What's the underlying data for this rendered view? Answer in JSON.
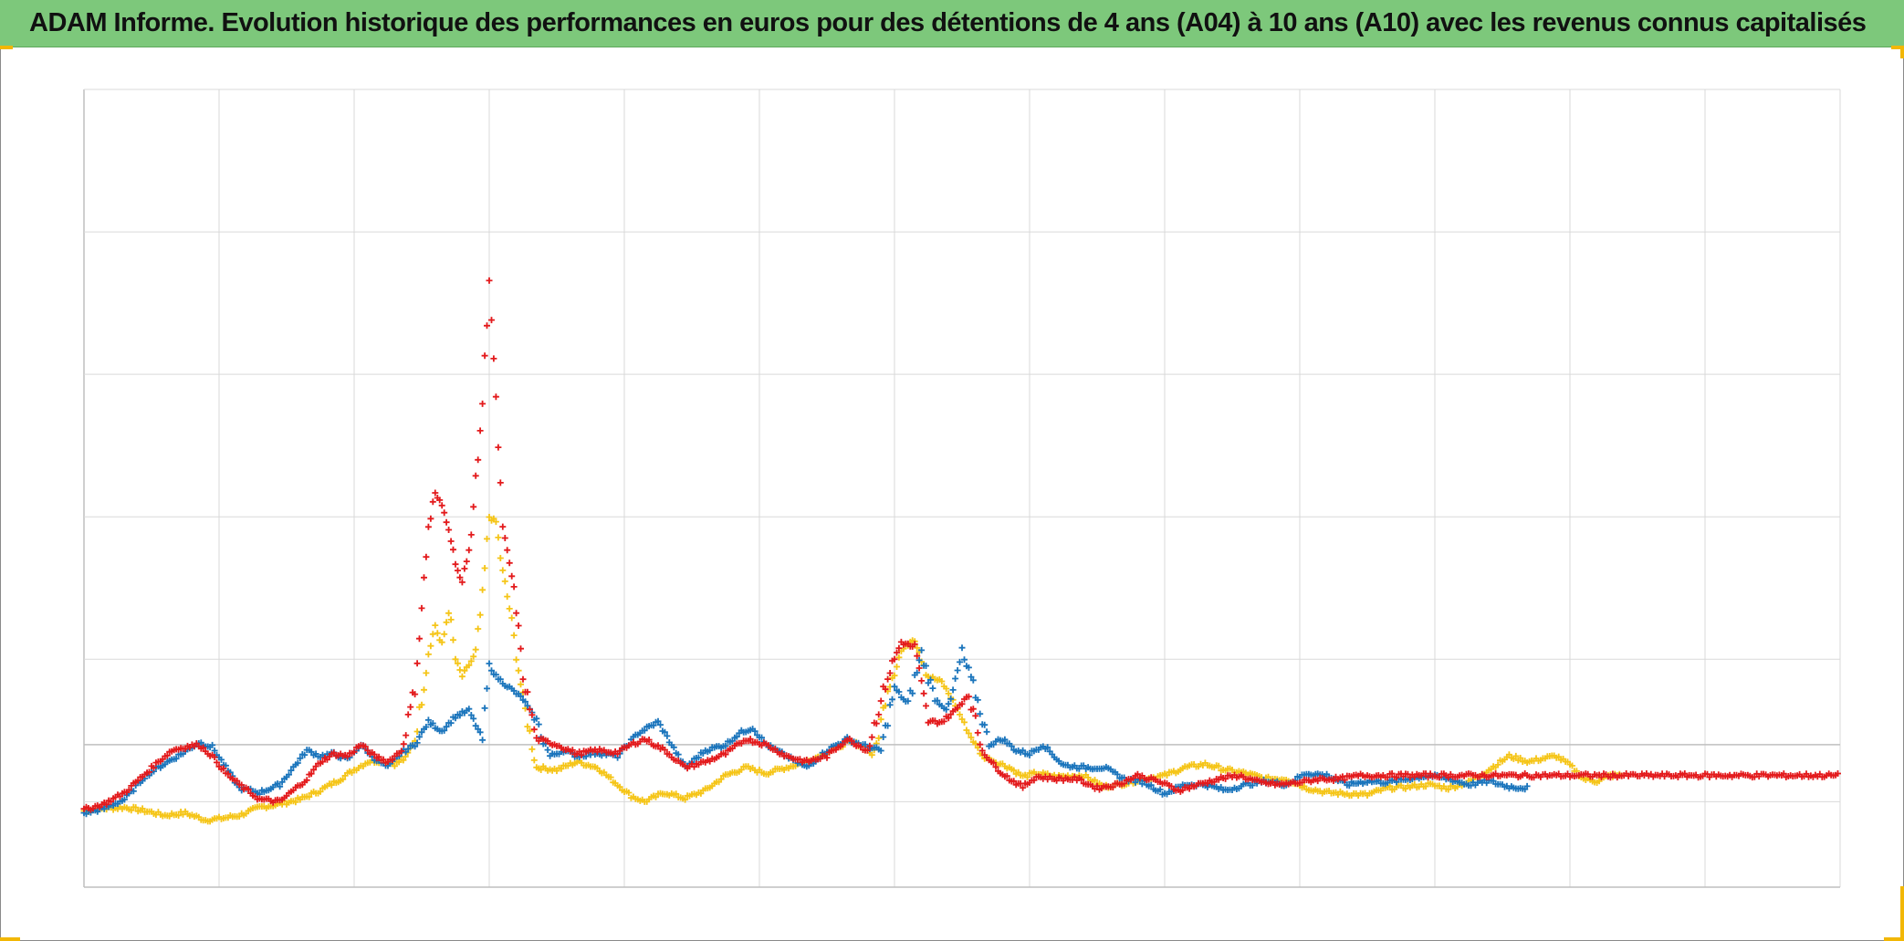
{
  "title": "ADAM Informe. Evolution historique des performances en euros pour des détentions de 4 ans (A04) à 10 ans (A10) avec les revenus connus capitalisés",
  "colors": {
    "title_bar": "#7dc87b",
    "grid": "#d9d9d9",
    "axis": "#bfbfbf",
    "corner_marks": "#f2b705"
  },
  "chart_data": {
    "type": "scatter",
    "marker": "plus",
    "title": "ADAM Informe. Evolution historique des performances en euros pour des détentions de 4 ans (A04) à 10 ans (A10) avec les revenus connus capitalisés",
    "xlabel": "",
    "ylabel": "",
    "xlim": [
      0,
      13
    ],
    "ylim": [
      -1.25,
      5.75
    ],
    "grid": true,
    "legend": "none",
    "tick_labels_shown": false,
    "series": [
      {
        "color": "#f5c518",
        "points": [
          [
            0,
            -0.58
          ],
          [
            0.15,
            -0.56
          ],
          [
            0.3,
            -0.55
          ],
          [
            0.45,
            -0.58
          ],
          [
            0.6,
            -0.62
          ],
          [
            0.75,
            -0.6
          ],
          [
            0.9,
            -0.66
          ],
          [
            1.0,
            -0.65
          ],
          [
            1.15,
            -0.62
          ],
          [
            1.3,
            -0.55
          ],
          [
            1.45,
            -0.52
          ],
          [
            1.6,
            -0.48
          ],
          [
            1.75,
            -0.4
          ],
          [
            1.9,
            -0.3
          ],
          [
            2.0,
            -0.22
          ],
          [
            2.1,
            -0.15
          ],
          [
            2.2,
            -0.14
          ],
          [
            2.3,
            -0.17
          ],
          [
            2.38,
            -0.12
          ],
          [
            2.45,
            0.05
          ],
          [
            2.5,
            0.4
          ],
          [
            2.55,
            0.8
          ],
          [
            2.6,
            1.05
          ],
          [
            2.65,
            0.85
          ],
          [
            2.7,
            1.2
          ],
          [
            2.75,
            0.75
          ],
          [
            2.8,
            0.6
          ],
          [
            2.85,
            0.7
          ],
          [
            2.9,
            0.8
          ],
          [
            2.95,
            1.3
          ],
          [
            3.0,
            2.0
          ],
          [
            3.05,
            1.95
          ],
          [
            3.1,
            1.5
          ],
          [
            3.15,
            1.2
          ],
          [
            3.2,
            0.8
          ],
          [
            3.25,
            0.4
          ],
          [
            3.35,
            -0.2
          ],
          [
            3.5,
            -0.22
          ],
          [
            3.65,
            -0.15
          ],
          [
            3.8,
            -0.2
          ],
          [
            3.95,
            -0.35
          ],
          [
            4.05,
            -0.45
          ],
          [
            4.15,
            -0.5
          ],
          [
            4.3,
            -0.42
          ],
          [
            4.45,
            -0.47
          ],
          [
            4.6,
            -0.4
          ],
          [
            4.75,
            -0.27
          ],
          [
            4.9,
            -0.2
          ],
          [
            5.05,
            -0.25
          ],
          [
            5.2,
            -0.2
          ],
          [
            5.35,
            -0.15
          ],
          [
            5.5,
            -0.07
          ],
          [
            5.65,
            0.02
          ],
          [
            5.75,
            0.0
          ],
          [
            5.85,
            -0.1
          ],
          [
            5.95,
            0.5
          ],
          [
            6.05,
            0.82
          ],
          [
            6.15,
            0.95
          ],
          [
            6.25,
            0.6
          ],
          [
            6.35,
            0.55
          ],
          [
            6.45,
            0.35
          ],
          [
            6.55,
            0.1
          ],
          [
            6.65,
            -0.1
          ],
          [
            6.75,
            -0.15
          ],
          [
            6.85,
            -0.2
          ],
          [
            6.95,
            -0.28
          ],
          [
            7.05,
            -0.25
          ],
          [
            7.2,
            -0.28
          ],
          [
            7.4,
            -0.27
          ],
          [
            7.55,
            -0.37
          ],
          [
            7.7,
            -0.34
          ],
          [
            7.85,
            -0.3
          ],
          [
            8.0,
            -0.27
          ],
          [
            8.15,
            -0.2
          ],
          [
            8.3,
            -0.17
          ],
          [
            8.45,
            -0.22
          ],
          [
            8.6,
            -0.25
          ],
          [
            8.75,
            -0.3
          ],
          [
            8.9,
            -0.3
          ],
          [
            9.05,
            -0.38
          ],
          [
            9.2,
            -0.42
          ],
          [
            9.35,
            -0.43
          ],
          [
            9.5,
            -0.44
          ],
          [
            9.65,
            -0.38
          ],
          [
            9.8,
            -0.37
          ],
          [
            9.95,
            -0.35
          ],
          [
            10.1,
            -0.38
          ],
          [
            10.25,
            -0.33
          ],
          [
            10.4,
            -0.22
          ],
          [
            10.55,
            -0.1
          ],
          [
            10.7,
            -0.15
          ],
          [
            10.8,
            -0.12
          ],
          [
            10.9,
            -0.1
          ],
          [
            11.0,
            -0.18
          ],
          [
            11.1,
            -0.3
          ],
          [
            11.2,
            -0.32
          ],
          [
            11.3,
            -0.27
          ],
          [
            11.4,
            -0.27
          ]
        ]
      },
      {
        "color": "#1b75bc",
        "points": [
          [
            0,
            -0.6
          ],
          [
            0.15,
            -0.56
          ],
          [
            0.3,
            -0.48
          ],
          [
            0.45,
            -0.28
          ],
          [
            0.55,
            -0.2
          ],
          [
            0.65,
            -0.13
          ],
          [
            0.75,
            -0.06
          ],
          [
            0.85,
            0.02
          ],
          [
            0.95,
            -0.02
          ],
          [
            1.05,
            -0.2
          ],
          [
            1.15,
            -0.38
          ],
          [
            1.3,
            -0.42
          ],
          [
            1.45,
            -0.35
          ],
          [
            1.55,
            -0.2
          ],
          [
            1.65,
            -0.05
          ],
          [
            1.75,
            -0.1
          ],
          [
            1.85,
            -0.08
          ],
          [
            1.95,
            -0.13
          ],
          [
            2.05,
            0.0
          ],
          [
            2.15,
            -0.12
          ],
          [
            2.25,
            -0.2
          ],
          [
            2.35,
            -0.07
          ],
          [
            2.45,
            0.0
          ],
          [
            2.55,
            0.2
          ],
          [
            2.65,
            0.12
          ],
          [
            2.75,
            0.25
          ],
          [
            2.85,
            0.3
          ],
          [
            2.95,
            0.05
          ],
          [
            3.0,
            0.7
          ],
          [
            3.05,
            0.6
          ],
          [
            3.15,
            0.5
          ],
          [
            3.25,
            0.4
          ],
          [
            3.35,
            0.2
          ],
          [
            3.45,
            -0.1
          ],
          [
            3.55,
            -0.05
          ],
          [
            3.65,
            -0.1
          ],
          [
            3.8,
            -0.07
          ],
          [
            3.95,
            -0.1
          ],
          [
            4.1,
            0.1
          ],
          [
            4.25,
            0.2
          ],
          [
            4.35,
            0.0
          ],
          [
            4.45,
            -0.2
          ],
          [
            4.6,
            -0.05
          ],
          [
            4.75,
            0.0
          ],
          [
            4.85,
            0.1
          ],
          [
            4.95,
            0.15
          ],
          [
            5.05,
            0.0
          ],
          [
            5.2,
            -0.1
          ],
          [
            5.35,
            -0.2
          ],
          [
            5.5,
            -0.05
          ],
          [
            5.65,
            0.05
          ],
          [
            5.8,
            -0.02
          ],
          [
            5.9,
            -0.05
          ],
          [
            6.0,
            0.5
          ],
          [
            6.1,
            0.35
          ],
          [
            6.2,
            0.8
          ],
          [
            6.3,
            0.4
          ],
          [
            6.4,
            0.3
          ],
          [
            6.5,
            0.8
          ],
          [
            6.6,
            0.45
          ],
          [
            6.7,
            0.0
          ],
          [
            6.8,
            0.05
          ],
          [
            6.9,
            -0.05
          ],
          [
            7.0,
            -0.08
          ],
          [
            7.1,
            0.0
          ],
          [
            7.25,
            -0.18
          ],
          [
            7.4,
            -0.2
          ],
          [
            7.55,
            -0.2
          ],
          [
            7.7,
            -0.3
          ],
          [
            7.85,
            -0.33
          ],
          [
            8.0,
            -0.43
          ],
          [
            8.15,
            -0.35
          ],
          [
            8.3,
            -0.35
          ],
          [
            8.45,
            -0.4
          ],
          [
            8.6,
            -0.35
          ],
          [
            8.75,
            -0.32
          ],
          [
            8.9,
            -0.35
          ],
          [
            9.05,
            -0.25
          ],
          [
            9.2,
            -0.27
          ],
          [
            9.35,
            -0.35
          ],
          [
            9.5,
            -0.32
          ],
          [
            9.65,
            -0.33
          ],
          [
            9.8,
            -0.3
          ],
          [
            9.95,
            -0.27
          ],
          [
            10.1,
            -0.3
          ],
          [
            10.25,
            -0.35
          ],
          [
            10.4,
            -0.32
          ],
          [
            10.55,
            -0.37
          ],
          [
            10.7,
            -0.38
          ]
        ]
      },
      {
        "color": "#e31a1c",
        "points": [
          [
            0,
            -0.57
          ],
          [
            0.15,
            -0.52
          ],
          [
            0.3,
            -0.42
          ],
          [
            0.45,
            -0.26
          ],
          [
            0.55,
            -0.15
          ],
          [
            0.65,
            -0.05
          ],
          [
            0.75,
            -0.02
          ],
          [
            0.85,
            0.0
          ],
          [
            0.95,
            -0.1
          ],
          [
            1.05,
            -0.25
          ],
          [
            1.15,
            -0.35
          ],
          [
            1.3,
            -0.48
          ],
          [
            1.45,
            -0.5
          ],
          [
            1.55,
            -0.4
          ],
          [
            1.65,
            -0.3
          ],
          [
            1.75,
            -0.15
          ],
          [
            1.85,
            -0.08
          ],
          [
            1.95,
            -0.1
          ],
          [
            2.05,
            0.0
          ],
          [
            2.15,
            -0.1
          ],
          [
            2.25,
            -0.15
          ],
          [
            2.35,
            -0.05
          ],
          [
            2.45,
            0.5
          ],
          [
            2.5,
            1.2
          ],
          [
            2.55,
            1.9
          ],
          [
            2.6,
            2.2
          ],
          [
            2.65,
            2.1
          ],
          [
            2.7,
            1.9
          ],
          [
            2.75,
            1.6
          ],
          [
            2.8,
            1.4
          ],
          [
            2.85,
            1.7
          ],
          [
            2.9,
            2.3
          ],
          [
            2.95,
            3.0
          ],
          [
            3.0,
            4.1
          ],
          [
            3.05,
            3.0
          ],
          [
            3.1,
            1.9
          ],
          [
            3.15,
            1.6
          ],
          [
            3.2,
            1.2
          ],
          [
            3.25,
            0.6
          ],
          [
            3.35,
            0.05
          ],
          [
            3.5,
            0.0
          ],
          [
            3.65,
            -0.08
          ],
          [
            3.8,
            -0.05
          ],
          [
            3.95,
            -0.07
          ],
          [
            4.05,
            0.0
          ],
          [
            4.15,
            0.05
          ],
          [
            4.3,
            -0.05
          ],
          [
            4.45,
            -0.2
          ],
          [
            4.6,
            -0.15
          ],
          [
            4.75,
            -0.08
          ],
          [
            4.9,
            0.05
          ],
          [
            5.05,
            0.0
          ],
          [
            5.2,
            -0.1
          ],
          [
            5.35,
            -0.15
          ],
          [
            5.5,
            -0.1
          ],
          [
            5.65,
            0.05
          ],
          [
            5.8,
            -0.05
          ],
          [
            5.95,
            0.6
          ],
          [
            6.05,
            0.9
          ],
          [
            6.15,
            0.85
          ],
          [
            6.25,
            0.2
          ],
          [
            6.35,
            0.2
          ],
          [
            6.45,
            0.3
          ],
          [
            6.55,
            0.45
          ],
          [
            6.65,
            -0.05
          ],
          [
            6.75,
            -0.2
          ],
          [
            6.85,
            -0.3
          ],
          [
            6.95,
            -0.37
          ],
          [
            7.05,
            -0.28
          ],
          [
            7.2,
            -0.3
          ],
          [
            7.35,
            -0.3
          ],
          [
            7.5,
            -0.38
          ],
          [
            7.65,
            -0.35
          ],
          [
            7.8,
            -0.27
          ],
          [
            7.95,
            -0.32
          ],
          [
            8.1,
            -0.4
          ],
          [
            8.25,
            -0.35
          ],
          [
            8.4,
            -0.3
          ],
          [
            8.55,
            -0.27
          ],
          [
            8.7,
            -0.33
          ],
          [
            8.85,
            -0.35
          ],
          [
            9.0,
            -0.33
          ],
          [
            9.15,
            -0.3
          ],
          [
            9.3,
            -0.3
          ],
          [
            9.45,
            -0.27
          ],
          [
            9.6,
            -0.27
          ],
          [
            9.75,
            -0.27
          ],
          [
            9.9,
            -0.27
          ],
          [
            10.1,
            -0.27
          ],
          [
            10.3,
            -0.27
          ],
          [
            10.5,
            -0.27
          ],
          [
            10.7,
            -0.27
          ],
          [
            10.9,
            -0.27
          ],
          [
            11.1,
            -0.27
          ],
          [
            11.3,
            -0.27
          ],
          [
            11.5,
            -0.27
          ],
          [
            11.7,
            -0.27
          ],
          [
            11.9,
            -0.27
          ],
          [
            12.1,
            -0.27
          ],
          [
            12.3,
            -0.27
          ],
          [
            12.5,
            -0.27
          ],
          [
            12.7,
            -0.27
          ],
          [
            12.9,
            -0.27
          ],
          [
            13.0,
            -0.27
          ]
        ]
      }
    ]
  }
}
